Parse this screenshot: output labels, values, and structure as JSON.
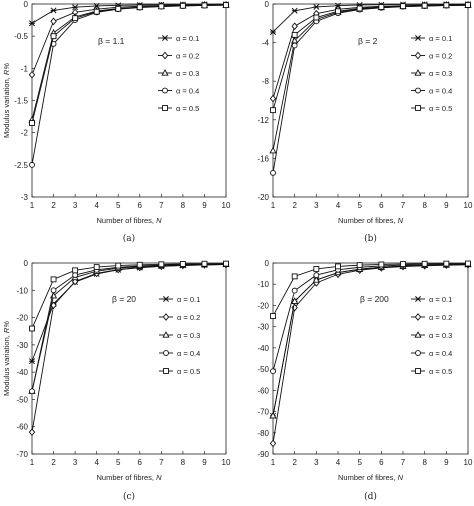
{
  "chart_data": [
    {
      "type": "line",
      "caption": "(a)",
      "annotation": "β = 1.1",
      "xlabel_text": "Number of fibres, ",
      "xlabel_symbol": "N",
      "ylabel_text": "Modulus variation, ",
      "ylabel_symbol": "R%",
      "x": [
        1,
        2,
        3,
        4,
        5,
        6,
        7,
        8,
        9,
        10
      ],
      "xlim": [
        1,
        10
      ],
      "ylim": [
        -3,
        0
      ],
      "yticks": [
        0,
        -0.5,
        -1,
        -1.5,
        -2,
        -2.5,
        -3
      ],
      "xticks": [
        1,
        2,
        3,
        4,
        5,
        6,
        7,
        8,
        9,
        10
      ],
      "ytick_labels": [
        "0",
        "-0.5",
        "-1",
        "-1.5",
        "-2",
        "-2.5",
        "-3"
      ],
      "xtick_labels": [
        "1",
        "2",
        "3",
        "4",
        "5",
        "6",
        "7",
        "8",
        "9",
        "10"
      ],
      "legend_position": "right",
      "series": [
        {
          "name": "α = 0.1",
          "marker": "star",
          "values": [
            -0.3,
            -0.1,
            -0.05,
            -0.03,
            -0.02,
            -0.015,
            -0.01,
            -0.008,
            -0.006,
            -0.005
          ]
        },
        {
          "name": "α = 0.2",
          "marker": "diamond",
          "values": [
            -1.1,
            -0.27,
            -0.13,
            -0.08,
            -0.05,
            -0.035,
            -0.025,
            -0.02,
            -0.015,
            -0.012
          ]
        },
        {
          "name": "α = 0.3",
          "marker": "triangle",
          "values": [
            -1.8,
            -0.45,
            -0.2,
            -0.11,
            -0.07,
            -0.05,
            -0.035,
            -0.027,
            -0.02,
            -0.016
          ]
        },
        {
          "name": "α = 0.4",
          "marker": "circle",
          "values": [
            -2.5,
            -0.62,
            -0.25,
            -0.13,
            -0.08,
            -0.055,
            -0.04,
            -0.03,
            -0.023,
            -0.018
          ]
        },
        {
          "name": "α = 0.5",
          "marker": "square",
          "values": [
            -1.85,
            -0.5,
            -0.22,
            -0.12,
            -0.075,
            -0.05,
            -0.037,
            -0.028,
            -0.022,
            -0.017
          ]
        }
      ]
    },
    {
      "type": "line",
      "caption": "(b)",
      "annotation": "β = 2",
      "xlabel_text": "Number of fibres, ",
      "xlabel_symbol": "N",
      "ylabel_text": "",
      "ylabel_symbol": "",
      "x": [
        1,
        2,
        3,
        4,
        5,
        6,
        7,
        8,
        9,
        10
      ],
      "xlim": [
        1,
        10
      ],
      "ylim": [
        -20,
        0
      ],
      "yticks": [
        0,
        -4,
        -8,
        -12,
        -16,
        -20
      ],
      "xticks": [
        1,
        2,
        3,
        4,
        5,
        6,
        7,
        8,
        9,
        10
      ],
      "ytick_labels": [
        "0",
        "-4",
        "-8",
        "-12",
        "-16",
        "-20"
      ],
      "xtick_labels": [
        "1",
        "2",
        "3",
        "4",
        "5",
        "6",
        "7",
        "8",
        "9",
        "10"
      ],
      "legend_position": "right",
      "series": [
        {
          "name": "α = 0.1",
          "marker": "star",
          "values": [
            -2.9,
            -0.7,
            -0.3,
            -0.17,
            -0.1,
            -0.07,
            -0.05,
            -0.04,
            -0.03,
            -0.02
          ]
        },
        {
          "name": "α = 0.2",
          "marker": "diamond",
          "values": [
            -9.8,
            -2.3,
            -1.0,
            -0.55,
            -0.35,
            -0.24,
            -0.17,
            -0.13,
            -0.1,
            -0.08
          ]
        },
        {
          "name": "α = 0.3",
          "marker": "triangle",
          "values": [
            -15.2,
            -3.8,
            -1.6,
            -0.85,
            -0.53,
            -0.36,
            -0.26,
            -0.2,
            -0.15,
            -0.12
          ]
        },
        {
          "name": "α = 0.4",
          "marker": "circle",
          "values": [
            -17.5,
            -4.3,
            -1.8,
            -0.95,
            -0.58,
            -0.39,
            -0.28,
            -0.21,
            -0.16,
            -0.13
          ]
        },
        {
          "name": "α = 0.5",
          "marker": "square",
          "values": [
            -11,
            -3.2,
            -1.4,
            -0.75,
            -0.46,
            -0.31,
            -0.22,
            -0.17,
            -0.13,
            -0.1
          ]
        }
      ]
    },
    {
      "type": "line",
      "caption": "(c)",
      "annotation": "β = 20",
      "xlabel_text": "Number of fibres, ",
      "xlabel_symbol": "N",
      "ylabel_text": "Modulus variation, ",
      "ylabel_symbol": "R%",
      "x": [
        1,
        2,
        3,
        4,
        5,
        6,
        7,
        8,
        9,
        10
      ],
      "xlim": [
        1,
        10
      ],
      "ylim": [
        -70,
        0
      ],
      "yticks": [
        0,
        -10,
        -20,
        -30,
        -40,
        -50,
        -60,
        -70
      ],
      "xticks": [
        1,
        2,
        3,
        4,
        5,
        6,
        7,
        8,
        9,
        10
      ],
      "ytick_labels": [
        "0",
        "-10",
        "-20",
        "-30",
        "-40",
        "-50",
        "-60",
        "-70"
      ],
      "xtick_labels": [
        "1",
        "2",
        "3",
        "4",
        "5",
        "6",
        "7",
        "8",
        "9",
        "10"
      ],
      "legend_position": "right",
      "series": [
        {
          "name": "α = 0.1",
          "marker": "star",
          "values": [
            -36,
            -15,
            -7,
            -4,
            -2.5,
            -1.7,
            -1.2,
            -0.9,
            -0.7,
            -0.5
          ]
        },
        {
          "name": "α = 0.2",
          "marker": "diamond",
          "values": [
            -62,
            -15.5,
            -6.8,
            -3.8,
            -2.4,
            -1.6,
            -1.2,
            -0.9,
            -0.7,
            -0.55
          ]
        },
        {
          "name": "α = 0.3",
          "marker": "triangle",
          "values": [
            -47,
            -12,
            -5.3,
            -3,
            -1.9,
            -1.3,
            -0.95,
            -0.72,
            -0.56,
            -0.45
          ]
        },
        {
          "name": "α = 0.4",
          "marker": "circle",
          "values": [
            -47,
            -10,
            -4.4,
            -2.5,
            -1.6,
            -1.1,
            -0.8,
            -0.6,
            -0.47,
            -0.38
          ]
        },
        {
          "name": "α = 0.5",
          "marker": "square",
          "values": [
            -24,
            -6,
            -2.7,
            -1.5,
            -0.95,
            -0.65,
            -0.48,
            -0.36,
            -0.28,
            -0.23
          ]
        }
      ]
    },
    {
      "type": "line",
      "caption": "(d)",
      "annotation": "β = 200",
      "xlabel_text": "Number of fibres, ",
      "xlabel_symbol": "N",
      "ylabel_text": "",
      "ylabel_symbol": "",
      "x": [
        1,
        2,
        3,
        4,
        5,
        6,
        7,
        8,
        9,
        10
      ],
      "xlim": [
        1,
        10
      ],
      "ylim": [
        -90,
        0
      ],
      "yticks": [
        0,
        -10,
        -20,
        -30,
        -40,
        -50,
        -60,
        -70,
        -80,
        -90
      ],
      "xticks": [
        1,
        2,
        3,
        4,
        5,
        6,
        7,
        8,
        9,
        10
      ],
      "ytick_labels": [
        "0",
        "-10",
        "-20",
        "-30",
        "-40",
        "-50",
        "-60",
        "-70",
        "-80",
        "-90"
      ],
      "xtick_labels": [
        "1",
        "2",
        "3",
        "4",
        "5",
        "6",
        "7",
        "8",
        "9",
        "10"
      ],
      "legend_position": "right",
      "series": [
        {
          "name": "α = 0.1",
          "marker": "star",
          "values": [
            -72,
            -18,
            -8,
            -4.5,
            -2.9,
            -2,
            -1.5,
            -1.1,
            -0.9,
            -0.7
          ]
        },
        {
          "name": "α = 0.2",
          "marker": "diamond",
          "values": [
            -85,
            -21,
            -9.4,
            -5.3,
            -3.4,
            -2.3,
            -1.7,
            -1.3,
            -1,
            -0.85
          ]
        },
        {
          "name": "α = 0.3",
          "marker": "triangle",
          "values": [
            -72,
            -18,
            -8,
            -4.5,
            -2.9,
            -2,
            -1.5,
            -1.1,
            -0.9,
            -0.7
          ]
        },
        {
          "name": "α = 0.4",
          "marker": "circle",
          "values": [
            -51,
            -13,
            -5.7,
            -3.2,
            -2,
            -1.4,
            -1,
            -0.8,
            -0.63,
            -0.5
          ]
        },
        {
          "name": "α = 0.5",
          "marker": "square",
          "values": [
            -25,
            -6.3,
            -2.8,
            -1.6,
            -1,
            -0.7,
            -0.5,
            -0.38,
            -0.3,
            -0.25
          ]
        }
      ]
    }
  ]
}
